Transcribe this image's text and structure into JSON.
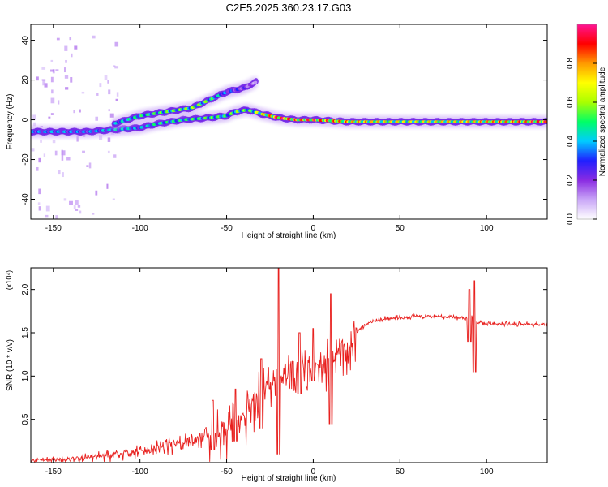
{
  "title": "C2E5.2025.360.23.17.G03",
  "chart_data": [
    {
      "type": "heatmap",
      "name": "spectrogram",
      "xlabel": "Height of straight line (km)",
      "ylabel": "Frequency (Hz)",
      "xlim": [
        -163,
        135
      ],
      "ylim": [
        -50,
        48
      ],
      "xticks": [
        -150,
        -100,
        -50,
        0,
        50,
        100
      ],
      "yticks": [
        -40,
        -20,
        0,
        20,
        40
      ],
      "colorbar": {
        "label": "Normalized spectral amplitude",
        "range": [
          0,
          1
        ],
        "ticks": [
          0.0,
          0.2,
          0.4,
          0.6,
          0.8
        ],
        "tick_labels": [
          "0.0",
          "0.2",
          "0.4",
          "0.6",
          "0.8"
        ],
        "colormap": [
          "#ffffff",
          "#c9a6f7",
          "#8a2be2",
          "#2020ff",
          "#00ccff",
          "#00ff66",
          "#aaff00",
          "#ffff00",
          "#ff9900",
          "#ff0000",
          "#ff1493"
        ]
      },
      "ridges": [
        {
          "name": "main-track",
          "points": [
            [
              -163,
              -6
            ],
            [
              -150,
              -6
            ],
            [
              -130,
              -6
            ],
            [
              -115,
              -5
            ],
            [
              -100,
              -4
            ],
            [
              -90,
              -2
            ],
            [
              -75,
              0
            ],
            [
              -60,
              1
            ],
            [
              -50,
              2
            ],
            [
              -45,
              4
            ],
            [
              -38,
              5
            ],
            [
              -30,
              3
            ],
            [
              -20,
              1
            ],
            [
              -10,
              0
            ],
            [
              0,
              0
            ],
            [
              20,
              -1
            ],
            [
              50,
              -1
            ],
            [
              90,
              -1
            ],
            [
              135,
              -1
            ]
          ],
          "amplitudes": [
            0.35,
            0.4,
            0.35,
            0.45,
            0.4,
            0.5,
            0.5,
            0.55,
            0.5,
            0.6,
            0.55,
            0.7,
            0.95,
            0.85,
            0.9,
            0.8,
            0.7,
            0.75,
            0.9
          ]
        },
        {
          "name": "rising-branch",
          "points": [
            [
              -115,
              -2
            ],
            [
              -100,
              2
            ],
            [
              -85,
              4
            ],
            [
              -70,
              6
            ],
            [
              -60,
              10
            ],
            [
              -50,
              14
            ],
            [
              -40,
              16
            ],
            [
              -33,
              19
            ]
          ],
          "amplitudes": [
            0.4,
            0.5,
            0.55,
            0.6,
            0.55,
            0.35,
            0.25,
            0.15
          ]
        }
      ]
    },
    {
      "type": "line",
      "name": "snr",
      "xlabel": "Height of straight line (km)",
      "ylabel": "SNR (10 * v/v)",
      "scale_note": "(x10⁴)",
      "xlim": [
        -163,
        135
      ],
      "ylim": [
        0,
        2.25
      ],
      "xticks": [
        -150,
        -100,
        -50,
        0,
        50,
        100
      ],
      "yticks": [
        0.5,
        1.0,
        1.5,
        2.0
      ],
      "ytick_labels": [
        "0.5",
        "1.0",
        "1.5",
        "2.0"
      ],
      "color": "#e8201e",
      "x": [
        -163,
        -150,
        -140,
        -130,
        -120,
        -110,
        -100,
        -90,
        -80,
        -70,
        -60,
        -55,
        -50,
        -45,
        -40,
        -35,
        -30,
        -25,
        -22,
        -20,
        -15,
        -10,
        -5,
        0,
        5,
        10,
        15,
        20,
        25,
        30,
        40,
        50,
        60,
        70,
        80,
        88,
        91,
        94,
        97,
        100,
        110,
        120,
        135
      ],
      "y": [
        0.03,
        0.04,
        0.05,
        0.07,
        0.09,
        0.11,
        0.14,
        0.18,
        0.22,
        0.27,
        0.33,
        0.38,
        0.42,
        0.45,
        0.55,
        0.7,
        0.85,
        0.92,
        1.0,
        1.05,
        1.05,
        1.1,
        1.12,
        1.15,
        1.2,
        1.22,
        1.3,
        1.4,
        1.5,
        1.6,
        1.66,
        1.68,
        1.69,
        1.69,
        1.68,
        1.66,
        1.7,
        1.6,
        1.62,
        1.6,
        1.6,
        1.6,
        1.6
      ],
      "spikes": [
        {
          "x": -20,
          "y": 2.25,
          "low": 0.1
        },
        {
          "x": 10,
          "y": 1.95,
          "low": 0.45
        },
        {
          "x": 93,
          "y": 2.1,
          "low": 1.05
        },
        {
          "x": 90,
          "y": 2.0,
          "low": 1.4
        },
        {
          "x": -45,
          "y": 0.85,
          "low": 0.25
        },
        {
          "x": -58,
          "y": 0.72,
          "low": 0.15
        },
        {
          "x": -30,
          "y": 1.2,
          "low": 0.4
        },
        {
          "x": 0,
          "y": 1.55,
          "low": 0.95
        },
        {
          "x": -8,
          "y": 1.5,
          "low": 0.8
        }
      ]
    }
  ]
}
